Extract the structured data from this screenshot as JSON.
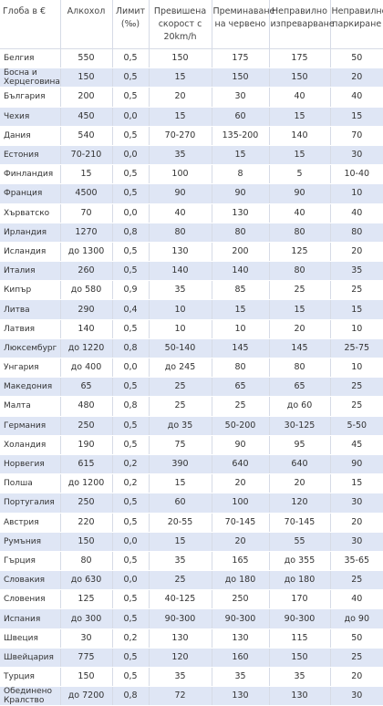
{
  "headers": [
    "Глоба в €",
    "Алкохол",
    "Лимит (‰)",
    "Превишена скорост с 20km/h",
    "Преминаване на червено",
    "Неправилно изпреварване",
    "Неправилно паркиране"
  ],
  "rows": [
    [
      "Белгия",
      "550",
      "0,5",
      "150",
      "175",
      "175",
      "50"
    ],
    [
      "Босна и Херцеговина",
      "150",
      "0,5",
      "15",
      "150",
      "150",
      "20"
    ],
    [
      "България",
      "200",
      "0,5",
      "20",
      "30",
      "40",
      "40"
    ],
    [
      "Чехия",
      "450",
      "0,0",
      "15",
      "60",
      "15",
      "15"
    ],
    [
      "Дания",
      "540",
      "0,5",
      "70-270",
      "135-200",
      "140",
      "70"
    ],
    [
      "Естония",
      "70-210",
      "0,0",
      "35",
      "15",
      "15",
      "30"
    ],
    [
      "Финландия",
      "15",
      "0,5",
      "100",
      "8",
      "5",
      "10-40"
    ],
    [
      "Франция",
      "4500",
      "0,5",
      "90",
      "90",
      "90",
      "10"
    ],
    [
      "Хърватско",
      "70",
      "0,0",
      "40",
      "130",
      "40",
      "40"
    ],
    [
      "Ирландия",
      "1270",
      "0,8",
      "80",
      "80",
      "80",
      "80"
    ],
    [
      "Исландия",
      "до 1300",
      "0,5",
      "130",
      "200",
      "125",
      "20"
    ],
    [
      "Италия",
      "260",
      "0,5",
      "140",
      "140",
      "80",
      "35"
    ],
    [
      "Кипър",
      "до 580",
      "0,9",
      "35",
      "85",
      "25",
      "25"
    ],
    [
      "Литва",
      "290",
      "0,4",
      "10",
      "15",
      "15",
      "15"
    ],
    [
      "Латвия",
      "140",
      "0,5",
      "10",
      "10",
      "20",
      "10"
    ],
    [
      "Люксембург",
      "до 1220",
      "0,8",
      "50-140",
      "145",
      "145",
      "25-75"
    ],
    [
      "Унгария",
      "до 400",
      "0,0",
      "до 245",
      "80",
      "80",
      "10"
    ],
    [
      "Македония",
      "65",
      "0,5",
      "25",
      "65",
      "65",
      "25"
    ],
    [
      "Малта",
      "480",
      "0,8",
      "25",
      "25",
      "до 60",
      "25"
    ],
    [
      "Германия",
      "250",
      "0,5",
      "до 35",
      "50-200",
      "30-125",
      "5-50"
    ],
    [
      "Холандия",
      "190",
      "0,5",
      "75",
      "90",
      "95",
      "45"
    ],
    [
      "Норвегия",
      "615",
      "0,2",
      "390",
      "640",
      "640",
      "90"
    ],
    [
      "Полша",
      "до 1200",
      "0,2",
      "15",
      "20",
      "20",
      "15"
    ],
    [
      "Португалия",
      "250",
      "0,5",
      "60",
      "100",
      "120",
      "30"
    ],
    [
      "Австрия",
      "220",
      "0,5",
      "20-55",
      "70-145",
      "70-145",
      "20"
    ],
    [
      "Румъния",
      "150",
      "0,0",
      "15",
      "20",
      "55",
      "30"
    ],
    [
      "Гърция",
      "80",
      "0,5",
      "35",
      "165",
      "до 355",
      "35-65"
    ],
    [
      "Словакия",
      "до 630",
      "0,0",
      "25",
      "до 180",
      "до 180",
      "25"
    ],
    [
      "Словения",
      "125",
      "0,5",
      "40-125",
      "250",
      "170",
      "40"
    ],
    [
      "Испания",
      "до 300",
      "0,5",
      "90-300",
      "90-300",
      "90-300",
      "до 90"
    ],
    [
      "Швеция",
      "30",
      "0,2",
      "130",
      "130",
      "115",
      "50"
    ],
    [
      "Швейцария",
      "775",
      "0,5",
      "120",
      "160",
      "150",
      "25"
    ],
    [
      "Турция",
      "150",
      "0,5",
      "35",
      "35",
      "35",
      "20"
    ],
    [
      "Обединено Кралство",
      "до 7200",
      "0,8",
      "72",
      "130",
      "130",
      "30"
    ]
  ]
}
